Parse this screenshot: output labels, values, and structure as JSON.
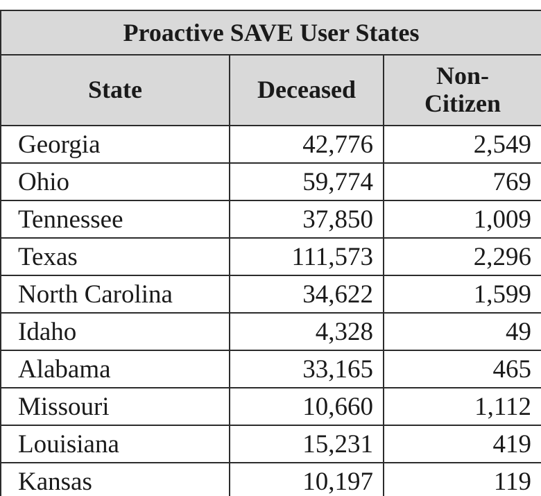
{
  "table": {
    "title": "Proactive SAVE User States",
    "headers": [
      "State",
      "Deceased",
      "Non-Citizen"
    ],
    "rows": [
      [
        "Georgia",
        "42,776",
        "2,549"
      ],
      [
        "Ohio",
        "59,774",
        "769"
      ],
      [
        "Tennessee",
        "37,850",
        "1,009"
      ],
      [
        "Texas",
        "111,573",
        "2,296"
      ],
      [
        "North Carolina",
        "34,622",
        "1,599"
      ],
      [
        "Idaho",
        "4,328",
        "49"
      ],
      [
        "Alabama",
        "33,165",
        "465"
      ],
      [
        "Missouri",
        "10,660",
        "1,112"
      ],
      [
        "Louisiana",
        "15,231",
        "419"
      ],
      [
        "Kansas",
        "10,197",
        "119"
      ]
    ]
  }
}
